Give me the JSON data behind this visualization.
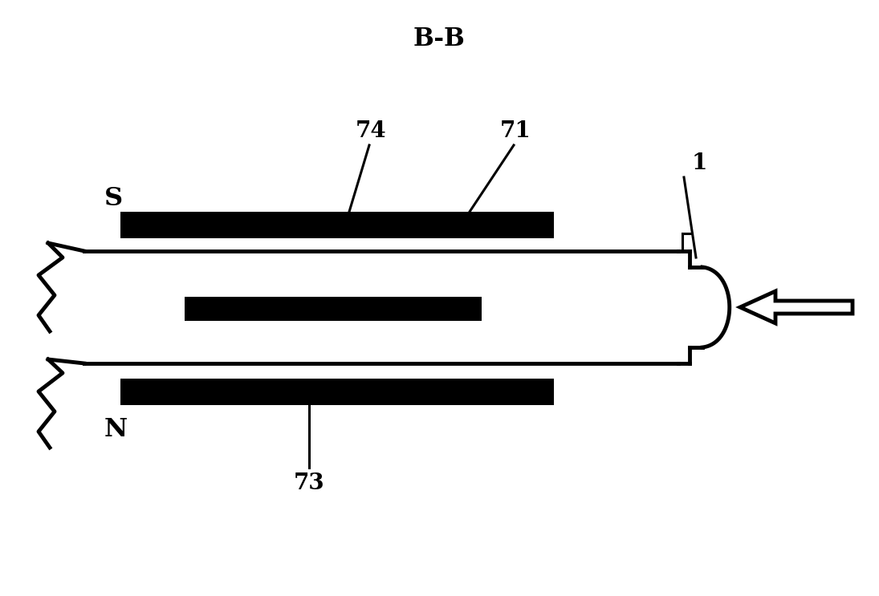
{
  "title": "B-B",
  "bg_color": "#ffffff",
  "line_color": "#000000",
  "bar_color": "#000000",
  "label_S": "S",
  "label_N": "N",
  "label_74": "74",
  "label_71": "71",
  "label_73": "73",
  "label_1": "1",
  "title_fontsize": 22,
  "label_fontsize": 20
}
